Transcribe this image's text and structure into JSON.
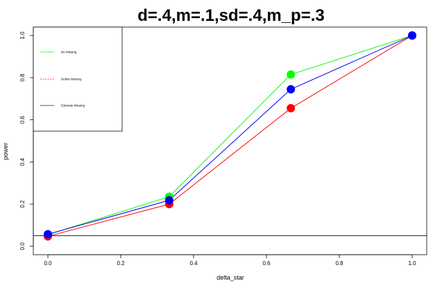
{
  "chart_data": {
    "type": "line",
    "title": "d=.4,m=.1,sd=.4,m_p=.3",
    "xlabel": "delta_star",
    "ylabel": "power",
    "xlim": [
      -0.04,
      1.04
    ],
    "ylim": [
      -0.04,
      1.04
    ],
    "x_ticks": [
      "0.0",
      "0.2",
      "0.4",
      "0.6",
      "0.8",
      "1.0"
    ],
    "y_ticks": [
      "0.0",
      "0.2",
      "0.4",
      "0.6",
      "0.8",
      "1.0"
    ],
    "reference_line_y": 0.05,
    "x": [
      0,
      0.333,
      0.667,
      1.0
    ],
    "series": [
      {
        "name": "No Missing",
        "values": [
          0.055,
          0.235,
          0.815,
          1.0
        ],
        "color": "#00ff00",
        "line_style": "solid"
      },
      {
        "name": "Delete Missing",
        "values": [
          0.047,
          0.2,
          0.655,
          1.0
        ],
        "color": "#ff0000",
        "line_style": "dashed"
      },
      {
        "name": "Estimate Missing",
        "values": [
          0.057,
          0.218,
          0.745,
          1.0
        ],
        "color": "#0000ff",
        "line_style": "solid"
      }
    ],
    "legend_position": "top-left",
    "grid": false
  }
}
